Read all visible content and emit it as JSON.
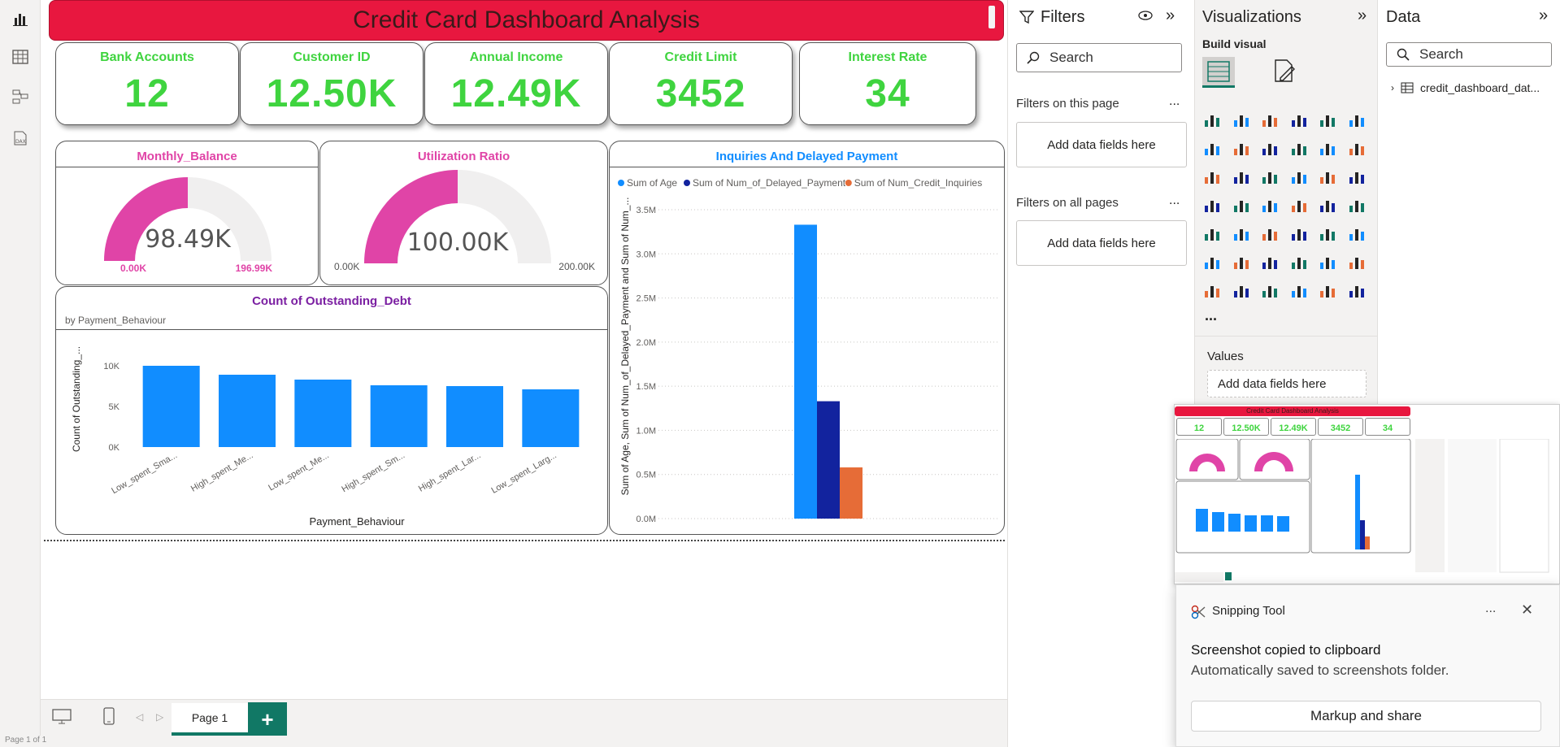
{
  "rail": {
    "icons": [
      "report-view-icon",
      "table-view-icon",
      "model-view-icon",
      "dax-query-icon"
    ]
  },
  "dashboard": {
    "title": "Credit Card Dashboard Analysis",
    "kpis": [
      {
        "label": "Bank Accounts",
        "value": "12"
      },
      {
        "label": "Customer ID",
        "value": "12.50K"
      },
      {
        "label": "Annual Income",
        "value": "12.49K"
      },
      {
        "label": "Credit Limit",
        "value": "3452"
      },
      {
        "label": "Interest Rate",
        "value": "34"
      }
    ],
    "gauges": [
      {
        "title": "Monthly_Balance",
        "value": 98.49,
        "value_label": "98.49K",
        "min": 0,
        "max": 196.99,
        "min_label": "0.00K",
        "max_label": "196.99K",
        "label_color": "#e044a7"
      },
      {
        "title": "Utilization Ratio",
        "value": 100.0,
        "value_label": "100.00K",
        "min": 0,
        "max": 200.0,
        "min_label": "0.00K",
        "max_label": "200.00K",
        "label_color": "#555555"
      }
    ],
    "colors": {
      "kpi_green": "#3fd43f",
      "title_red": "#e8173f",
      "gauge_pink": "#e044a7",
      "gauge_track": "#f0efef",
      "bar_blue": "#118dff",
      "navy": "#12239e",
      "orange": "#e66c37",
      "purple": "#7b1fa2"
    }
  },
  "chart_data": [
    {
      "type": "bar",
      "title": "Count of Outstanding_Debt",
      "subtitle": "by Payment_Behaviour",
      "xlabel": "Payment_Behaviour",
      "ylabel": "Count of Outstanding_...",
      "categories": [
        "Low_spent_Sma...",
        "High_spent_Me...",
        "Low_spent_Me...",
        "High_spent_Sm...",
        "High_spent_Lar...",
        "Low_spent_Larg..."
      ],
      "values": [
        10000,
        8900,
        8300,
        7600,
        7500,
        7100
      ],
      "yticks": [
        "0K",
        "5K",
        "10K"
      ],
      "ylim": [
        0,
        11000
      ],
      "grid": false
    },
    {
      "type": "bar",
      "title": "Inquiries And Delayed Payment",
      "ylabel": "Sum of Age, Sum of Num_of_Delayed_Payment and Sum of Num_...",
      "legend_position": "top-left",
      "series": [
        {
          "name": "Sum of Age",
          "values": [
            3330000
          ]
        },
        {
          "name": "Sum of Num_of_Delayed_Payment",
          "values": [
            1330000
          ]
        },
        {
          "name": "Sum of Num_Credit_Inquiries",
          "values": [
            580000
          ]
        }
      ],
      "yticks": [
        "0.0M",
        "0.5M",
        "1.0M",
        "1.5M",
        "2.0M",
        "2.5M",
        "3.0M",
        "3.5M"
      ],
      "ylim": [
        0,
        3500000
      ],
      "grid": true
    }
  ],
  "filters": {
    "title": "Filters",
    "search_placeholder": "Search",
    "on_page_label": "Filters on this page",
    "on_all_label": "Filters on all pages",
    "add_fields": "Add data fields here",
    "more": "..."
  },
  "viz": {
    "title": "Visualizations",
    "build_visual": "Build visual",
    "more": "...",
    "values_label": "Values",
    "values_add": "Add data fields here",
    "icon_rows": [
      [
        "stacked-bar-icon",
        "stacked-column-icon",
        "clustered-bar-icon",
        "clustered-column-icon",
        "100-bar-icon",
        "100-column-icon"
      ],
      [
        "line-chart-icon",
        "area-chart-icon",
        "stacked-area-icon",
        "ribbon-chart-icon",
        "line-column-icon",
        "line-stacked-column-icon"
      ],
      [
        "waterfall-icon",
        "column-combo-icon",
        "funnel-icon",
        "scatter-icon",
        "pie-icon",
        "donut-icon"
      ],
      [
        "treemap-icon",
        "map-icon",
        "filled-map-icon",
        "azure-map-icon",
        "gauge-icon",
        "card-icon"
      ],
      [
        "multirow-card-icon",
        "kpi-icon",
        "slicer-icon",
        "table-icon",
        "matrix-icon",
        "r-visual-icon"
      ],
      [
        "python-visual-icon",
        "key-influencers-icon",
        "decomposition-tree-icon",
        "qa-icon",
        "smart-narrative-icon",
        "goals-icon"
      ],
      [
        "paginated-report-icon",
        "power-apps-icon",
        "power-automate-icon",
        "metrics-icon",
        "get-more-visuals-icon",
        "chevron-visual-icon"
      ]
    ]
  },
  "data": {
    "title": "Data",
    "search_placeholder": "Search",
    "table_name": "credit_dashboard_dat..."
  },
  "pages": {
    "tab": "Page 1",
    "add": "+",
    "status": "Page 1 of 1"
  },
  "snip": {
    "app": "Snipping Tool",
    "more": "...",
    "headline": "Screenshot copied to clipboard",
    "sub": "Automatically saved to screenshots folder.",
    "button": "Markup and share",
    "thumb_kpis": [
      "12",
      "12.50K",
      "12.49K",
      "3452",
      "34"
    ],
    "thumb_title": "Credit Card Dashboard Analysis"
  }
}
